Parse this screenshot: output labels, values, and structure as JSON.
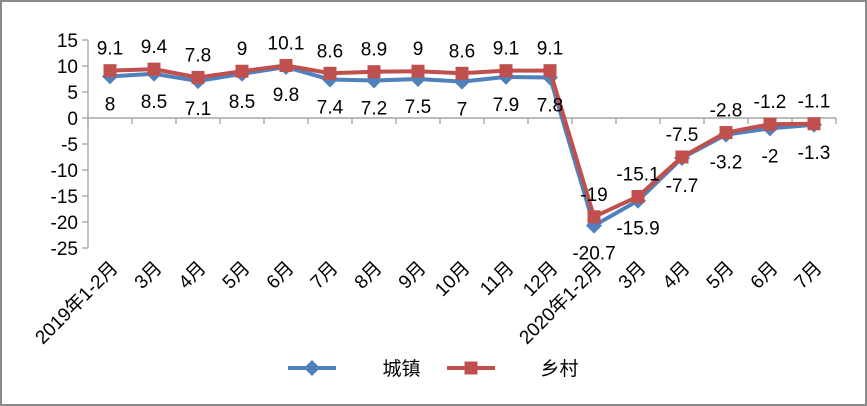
{
  "chart_data": {
    "type": "line",
    "title": "",
    "xlabel": "",
    "ylabel": "",
    "categories": [
      "2019年1-2月",
      "3月",
      "4月",
      "5月",
      "6月",
      "7月",
      "8月",
      "9月",
      "10月",
      "11月",
      "12月",
      "2020年1-2月",
      "3月",
      "4月",
      "5月",
      "6月",
      "7月"
    ],
    "series": [
      {
        "name": "城镇",
        "color": "#4F81BD",
        "marker": "diamond",
        "label_position": "below",
        "values": [
          8,
          8.5,
          7.1,
          8.5,
          9.8,
          7.4,
          7.2,
          7.5,
          7,
          7.9,
          7.8,
          -20.7,
          -15.9,
          -7.7,
          -3.2,
          -2,
          -1.3
        ]
      },
      {
        "name": "乡村",
        "color": "#C0504D",
        "marker": "square",
        "label_position": "above",
        "values": [
          9.1,
          9.4,
          7.8,
          9,
          10.1,
          8.6,
          8.9,
          9,
          8.6,
          9.1,
          9.1,
          -19,
          -15.1,
          -7.5,
          -2.8,
          -1.2,
          -1.1
        ]
      }
    ],
    "ylim": [
      -25,
      15
    ],
    "yticks": [
      15,
      10,
      5,
      0,
      -5,
      -10,
      -15,
      -20,
      -25
    ],
    "grid": false,
    "legend_position": "bottom",
    "axis_color": "#A6A6A6",
    "label_color": "#000000",
    "data_labels": true,
    "x_label_rotation": -45
  }
}
